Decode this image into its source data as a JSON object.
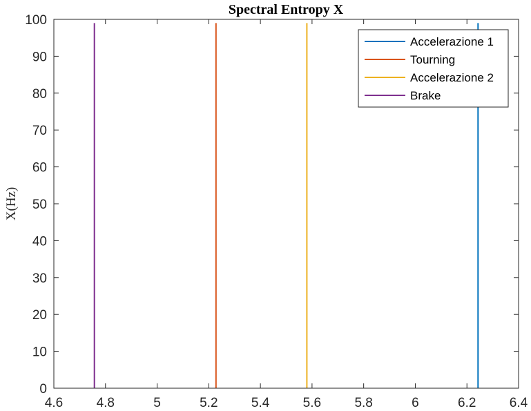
{
  "chart_data": {
    "type": "line",
    "title": "Spectral Entropy X",
    "xlabel": "",
    "ylabel": "X(Hz)",
    "xlim": [
      4.6,
      6.4
    ],
    "ylim": [
      0,
      100
    ],
    "xticks": [
      4.6,
      4.8,
      5,
      5.2,
      5.4,
      5.6,
      5.8,
      6,
      6.2,
      6.4
    ],
    "xtick_labels": [
      "4.6",
      "4.8",
      "5",
      "5.2",
      "5.4",
      "5.6",
      "5.8",
      "6",
      "6.2",
      "6.4"
    ],
    "yticks": [
      0,
      10,
      20,
      30,
      40,
      50,
      60,
      70,
      80,
      90,
      100
    ],
    "ytick_labels": [
      "0",
      "10",
      "20",
      "30",
      "40",
      "50",
      "60",
      "70",
      "80",
      "90",
      "100"
    ],
    "grid": false,
    "legend_position": "top-right",
    "series": [
      {
        "name": "Accelerazione 1",
        "color": "#0072BD",
        "x": [
          6.243,
          6.243
        ],
        "y": [
          0,
          99
        ]
      },
      {
        "name": "Tourning",
        "color": "#D95319",
        "x": [
          5.228,
          5.228
        ],
        "y": [
          0,
          99
        ]
      },
      {
        "name": "Accelerazione 2",
        "color": "#EDB120",
        "x": [
          5.58,
          5.58
        ],
        "y": [
          0,
          99
        ]
      },
      {
        "name": "Brake",
        "color": "#7E2F8E",
        "x": [
          4.757,
          4.757
        ],
        "y": [
          0,
          99
        ]
      }
    ]
  }
}
